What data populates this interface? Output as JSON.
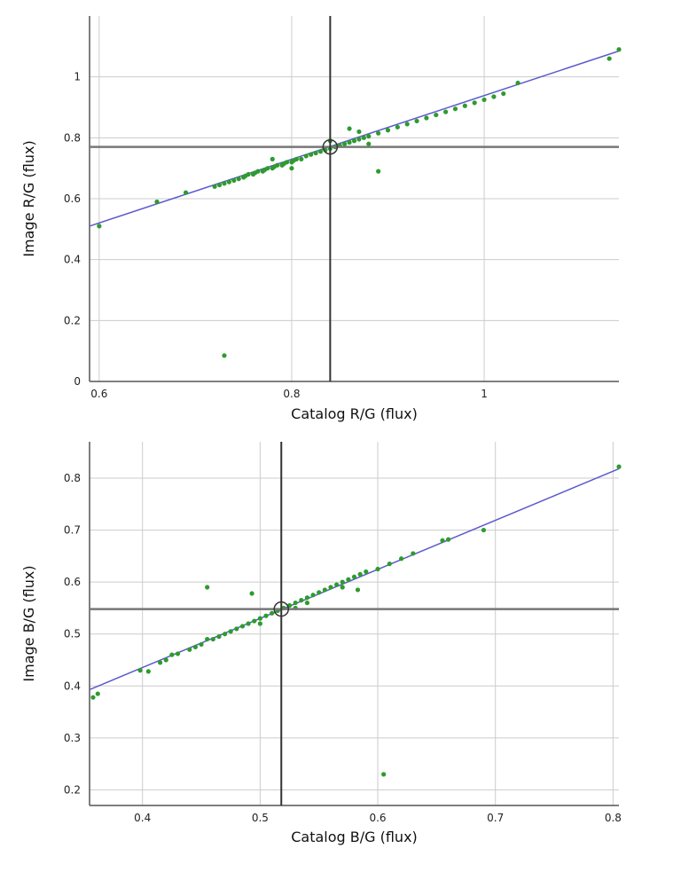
{
  "chart_data": [
    {
      "type": "scatter",
      "xlabel": "Catalog R/G (flux)",
      "ylabel": "Image R/G (flux)",
      "xlim": [
        0.59,
        1.14
      ],
      "ylim": [
        0,
        1.2
      ],
      "xticks": [
        0.6,
        0.8,
        1
      ],
      "yticks": [
        0,
        0.2,
        0.4,
        0.6,
        0.8,
        1
      ],
      "grid": true,
      "colors": {
        "points": "#2e9b2e",
        "fit_line": "#5b5bcc",
        "crosshair_v": "#333333",
        "crosshair_h": "#777777"
      },
      "fit_line": {
        "x": [
          0.59,
          1.14
        ],
        "y": [
          0.51,
          1.085
        ]
      },
      "crosshair": {
        "x": 0.84,
        "y": 0.77
      },
      "points": [
        [
          0.6,
          0.51
        ],
        [
          0.66,
          0.59
        ],
        [
          0.69,
          0.62
        ],
        [
          0.72,
          0.64
        ],
        [
          0.725,
          0.645
        ],
        [
          0.73,
          0.65
        ],
        [
          0.735,
          0.655
        ],
        [
          0.74,
          0.66
        ],
        [
          0.745,
          0.665
        ],
        [
          0.75,
          0.67
        ],
        [
          0.752,
          0.675
        ],
        [
          0.755,
          0.68
        ],
        [
          0.76,
          0.68
        ],
        [
          0.762,
          0.685
        ],
        [
          0.765,
          0.69
        ],
        [
          0.77,
          0.69
        ],
        [
          0.772,
          0.695
        ],
        [
          0.775,
          0.7
        ],
        [
          0.78,
          0.7
        ],
        [
          0.782,
          0.705
        ],
        [
          0.785,
          0.71
        ],
        [
          0.79,
          0.71
        ],
        [
          0.792,
          0.715
        ],
        [
          0.795,
          0.72
        ],
        [
          0.8,
          0.72
        ],
        [
          0.802,
          0.725
        ],
        [
          0.805,
          0.73
        ],
        [
          0.81,
          0.73
        ],
        [
          0.815,
          0.74
        ],
        [
          0.82,
          0.745
        ],
        [
          0.825,
          0.75
        ],
        [
          0.83,
          0.755
        ],
        [
          0.835,
          0.76
        ],
        [
          0.84,
          0.765
        ],
        [
          0.845,
          0.77
        ],
        [
          0.85,
          0.775
        ],
        [
          0.855,
          0.78
        ],
        [
          0.86,
          0.785
        ],
        [
          0.865,
          0.79
        ],
        [
          0.87,
          0.795
        ],
        [
          0.875,
          0.8
        ],
        [
          0.88,
          0.805
        ],
        [
          0.89,
          0.815
        ],
        [
          0.9,
          0.825
        ],
        [
          0.91,
          0.835
        ],
        [
          0.92,
          0.845
        ],
        [
          0.93,
          0.855
        ],
        [
          0.94,
          0.865
        ],
        [
          0.95,
          0.875
        ],
        [
          0.96,
          0.885
        ],
        [
          0.97,
          0.895
        ],
        [
          0.98,
          0.905
        ],
        [
          0.99,
          0.915
        ],
        [
          1.0,
          0.925
        ],
        [
          1.01,
          0.935
        ],
        [
          1.02,
          0.945
        ],
        [
          1.035,
          0.98
        ],
        [
          1.13,
          1.06
        ],
        [
          1.14,
          1.09
        ],
        [
          0.78,
          0.73
        ],
        [
          0.8,
          0.7
        ],
        [
          0.86,
          0.83
        ],
        [
          0.88,
          0.78
        ],
        [
          0.89,
          0.69
        ],
        [
          0.73,
          0.085
        ],
        [
          0.84,
          0.79
        ],
        [
          0.87,
          0.82
        ]
      ]
    },
    {
      "type": "scatter",
      "xlabel": "Catalog B/G (flux)",
      "ylabel": "Image B/G (flux)",
      "xlim": [
        0.355,
        0.805
      ],
      "ylim": [
        0.17,
        0.87
      ],
      "xticks": [
        0.4,
        0.5,
        0.6,
        0.7,
        0.8
      ],
      "yticks": [
        0.2,
        0.3,
        0.4,
        0.5,
        0.6,
        0.7,
        0.8
      ],
      "grid": true,
      "colors": {
        "points": "#2e9b2e",
        "fit_line": "#5b5bcc",
        "crosshair_v": "#333333",
        "crosshair_h": "#777777"
      },
      "fit_line": {
        "x": [
          0.355,
          0.805
        ],
        "y": [
          0.393,
          0.818
        ]
      },
      "crosshair": {
        "x": 0.518,
        "y": 0.548
      },
      "points": [
        [
          0.358,
          0.378
        ],
        [
          0.362,
          0.385
        ],
        [
          0.398,
          0.43
        ],
        [
          0.405,
          0.428
        ],
        [
          0.415,
          0.445
        ],
        [
          0.42,
          0.45
        ],
        [
          0.425,
          0.46
        ],
        [
          0.43,
          0.462
        ],
        [
          0.44,
          0.47
        ],
        [
          0.445,
          0.475
        ],
        [
          0.45,
          0.48
        ],
        [
          0.455,
          0.49
        ],
        [
          0.46,
          0.49
        ],
        [
          0.465,
          0.495
        ],
        [
          0.47,
          0.5
        ],
        [
          0.475,
          0.505
        ],
        [
          0.48,
          0.51
        ],
        [
          0.485,
          0.515
        ],
        [
          0.49,
          0.52
        ],
        [
          0.495,
          0.525
        ],
        [
          0.5,
          0.53
        ],
        [
          0.505,
          0.535
        ],
        [
          0.51,
          0.54
        ],
        [
          0.515,
          0.545
        ],
        [
          0.52,
          0.55
        ],
        [
          0.525,
          0.555
        ],
        [
          0.53,
          0.56
        ],
        [
          0.535,
          0.565
        ],
        [
          0.54,
          0.57
        ],
        [
          0.545,
          0.575
        ],
        [
          0.55,
          0.58
        ],
        [
          0.555,
          0.585
        ],
        [
          0.56,
          0.59
        ],
        [
          0.565,
          0.595
        ],
        [
          0.57,
          0.6
        ],
        [
          0.575,
          0.605
        ],
        [
          0.58,
          0.61
        ],
        [
          0.585,
          0.615
        ],
        [
          0.59,
          0.62
        ],
        [
          0.6,
          0.625
        ],
        [
          0.61,
          0.635
        ],
        [
          0.62,
          0.645
        ],
        [
          0.63,
          0.655
        ],
        [
          0.655,
          0.68
        ],
        [
          0.66,
          0.682
        ],
        [
          0.69,
          0.7
        ],
        [
          0.805,
          0.822
        ],
        [
          0.455,
          0.59
        ],
        [
          0.493,
          0.578
        ],
        [
          0.583,
          0.585
        ],
        [
          0.605,
          0.23
        ],
        [
          0.54,
          0.56
        ],
        [
          0.57,
          0.59
        ],
        [
          0.5,
          0.52
        ],
        [
          0.53,
          0.55
        ]
      ]
    }
  ]
}
